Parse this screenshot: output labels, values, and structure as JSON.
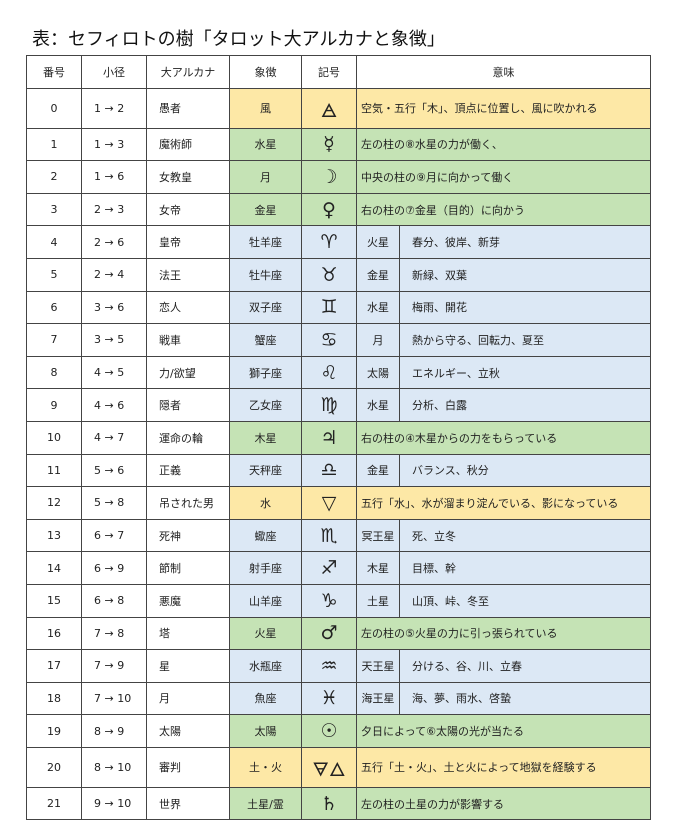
{
  "title": "表：セフィロトの樹「タロット大アルカナと象徴」",
  "colors": {
    "yellow": "#fde8a6",
    "green": "#c5e3b5",
    "blue": "#dce8f5",
    "white": "#ffffff"
  },
  "headers": [
    "番号",
    "小径",
    "大アルカナ",
    "象徴",
    "記号",
    "意味"
  ],
  "rows": [
    {
      "num": "0",
      "path": "1 → 2",
      "arcana": "愚者",
      "symbol": "風",
      "mark": "🜁",
      "kind": "yellow",
      "meaning": "空気・五行「木」、頂点に位置し、風に吹かれる"
    },
    {
      "num": "1",
      "path": "1 → 3",
      "arcana": "魔術師",
      "symbol": "水星",
      "mark": "☿",
      "kind": "green",
      "meaning": "左の柱の⑧水星の力が働く、"
    },
    {
      "num": "2",
      "path": "1 → 6",
      "arcana": "女教皇",
      "symbol": "月",
      "mark": "☽",
      "kind": "green",
      "meaning": "中央の柱の⑨月に向かって働く"
    },
    {
      "num": "3",
      "path": "2 → 3",
      "arcana": "女帝",
      "symbol": "金星",
      "mark": "♀",
      "kind": "green",
      "meaning": "右の柱の⑦金星（目的）に向かう"
    },
    {
      "num": "4",
      "path": "2 → 6",
      "arcana": "皇帝",
      "symbol": "牡羊座",
      "mark": "♈",
      "kind": "blue",
      "planet": "火星",
      "keywords": "春分、彼岸、新芽"
    },
    {
      "num": "5",
      "path": "2 → 4",
      "arcana": "法王",
      "symbol": "牡牛座",
      "mark": "♉",
      "kind": "blue",
      "planet": "金星",
      "keywords": "新緑、双葉"
    },
    {
      "num": "6",
      "path": "3 → 6",
      "arcana": "恋人",
      "symbol": "双子座",
      "mark": "♊",
      "kind": "blue",
      "planet": "水星",
      "keywords": "梅雨、開花"
    },
    {
      "num": "7",
      "path": "3 → 5",
      "arcana": "戦車",
      "symbol": "蟹座",
      "mark": "♋",
      "kind": "blue",
      "planet": "月",
      "keywords": "熱から守る、回転力、夏至"
    },
    {
      "num": "8",
      "path": "4 → 5",
      "arcana": "力/欲望",
      "symbol": "獅子座",
      "mark": "♌",
      "kind": "blue",
      "planet": "太陽",
      "keywords": "エネルギー、立秋"
    },
    {
      "num": "9",
      "path": "4 → 6",
      "arcana": "隠者",
      "symbol": "乙女座",
      "mark": "♍",
      "kind": "blue",
      "planet": "水星",
      "keywords": "分析、白露"
    },
    {
      "num": "10",
      "path": "4 → 7",
      "arcana": "運命の輪",
      "symbol": "木星",
      "mark": "♃",
      "kind": "green",
      "meaning": "右の柱の④木星からの力をもらっている"
    },
    {
      "num": "11",
      "path": "5 → 6",
      "arcana": "正義",
      "symbol": "天秤座",
      "mark": "♎",
      "kind": "blue",
      "planet": "金星",
      "keywords": "バランス、秋分"
    },
    {
      "num": "12",
      "path": "5 → 8",
      "arcana": "吊された男",
      "symbol": "水",
      "mark": "▽",
      "kind": "yellow",
      "meaning": "五行「水」、水が溜まり淀んでいる、影になっている"
    },
    {
      "num": "13",
      "path": "6 → 7",
      "arcana": "死神",
      "symbol": "蠍座",
      "mark": "♏",
      "kind": "blue",
      "planet": "冥王星",
      "keywords": "死、立冬"
    },
    {
      "num": "14",
      "path": "6 → 9",
      "arcana": "節制",
      "symbol": "射手座",
      "mark": "♐",
      "kind": "blue",
      "planet": "木星",
      "keywords": "目標、幹"
    },
    {
      "num": "15",
      "path": "6 → 8",
      "arcana": "悪魔",
      "symbol": "山羊座",
      "mark": "♑",
      "kind": "blue",
      "planet": "土星",
      "keywords": "山頂、峠、冬至"
    },
    {
      "num": "16",
      "path": "7 → 8",
      "arcana": "塔",
      "symbol": "火星",
      "mark": "♂",
      "kind": "green",
      "meaning": "左の柱の⑤火星の力に引っ張られている"
    },
    {
      "num": "17",
      "path": "7 → 9",
      "arcana": "星",
      "symbol": "水瓶座",
      "mark": "♒",
      "kind": "blue",
      "planet": "天王星",
      "keywords": "分ける、谷、川、立春"
    },
    {
      "num": "18",
      "path": "7 → 10",
      "arcana": "月",
      "symbol": "魚座",
      "mark": "♓",
      "kind": "blue",
      "planet": "海王星",
      "keywords": "海、夢、雨水、啓蟄"
    },
    {
      "num": "19",
      "path": "8 → 9",
      "arcana": "太陽",
      "symbol": "太陽",
      "mark": "☉",
      "kind": "green",
      "meaning": "夕日によって⑥太陽の光が当たる"
    },
    {
      "num": "20",
      "path": "8 → 10",
      "arcana": "審判",
      "symbol": "土・火",
      "mark": "🜃🜂",
      "kind": "yellow",
      "meaning": "五行「土・火」、土と火によって地獄を経験する"
    },
    {
      "num": "21",
      "path": "9 → 10",
      "arcana": "世界",
      "symbol": "土星/霊",
      "mark": "♄",
      "kind": "green",
      "meaning": "左の柱の土星の力が影響する"
    }
  ]
}
